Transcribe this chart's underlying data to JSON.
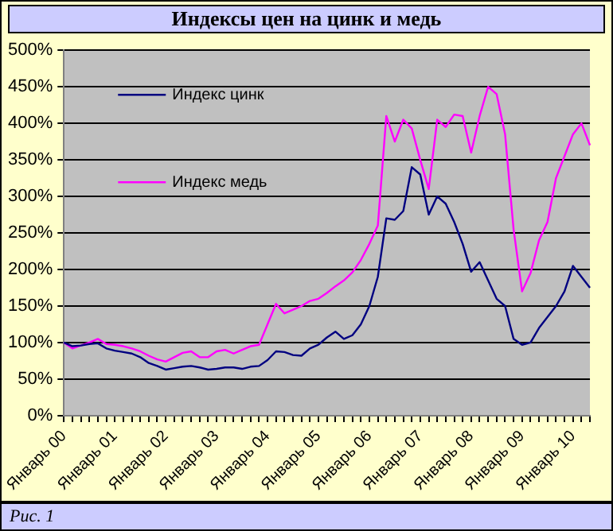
{
  "chart_data": {
    "type": "line",
    "title": "Индексы цен на цинк и медь",
    "categories": [
      "Январь 00",
      null,
      null,
      null,
      null,
      null,
      "Январь 01",
      null,
      null,
      null,
      null,
      null,
      "Январь 02",
      null,
      null,
      null,
      null,
      null,
      "Январь 03",
      null,
      null,
      null,
      null,
      null,
      "Январь 04",
      null,
      null,
      null,
      null,
      null,
      "Январь 05",
      null,
      null,
      null,
      null,
      null,
      "Январь 06",
      null,
      null,
      null,
      null,
      null,
      "Январь 07",
      null,
      null,
      null,
      null,
      null,
      "Январь 08",
      null,
      null,
      null,
      null,
      null,
      "Январь 09",
      null,
      null,
      null,
      null,
      null,
      "Январь 10",
      null,
      null
    ],
    "series": [
      {
        "name": "Индекс цинк",
        "color": "#000080",
        "values": [
          100,
          95,
          96,
          98,
          99,
          92,
          89,
          87,
          85,
          80,
          72,
          68,
          63,
          65,
          67,
          68,
          66,
          63,
          64,
          66,
          66,
          64,
          67,
          68,
          76,
          88,
          87,
          83,
          82,
          92,
          97,
          107,
          115,
          105,
          110,
          125,
          150,
          190,
          270,
          268,
          280,
          340,
          330,
          275,
          300,
          290,
          265,
          235,
          197,
          210,
          185,
          160,
          150,
          105,
          97,
          100,
          120,
          135,
          150,
          170,
          205,
          190,
          175
        ]
      },
      {
        "name": "Индекс медь",
        "color": "#ff00ff",
        "values": [
          100,
          92,
          96,
          100,
          105,
          98,
          97,
          95,
          92,
          88,
          82,
          77,
          74,
          80,
          86,
          88,
          80,
          80,
          88,
          90,
          85,
          90,
          95,
          97,
          125,
          153,
          140,
          145,
          150,
          157,
          160,
          168,
          177,
          185,
          196,
          213,
          235,
          260,
          410,
          375,
          405,
          393,
          350,
          310,
          405,
          395,
          412,
          410,
          360,
          410,
          450,
          440,
          385,
          255,
          170,
          195,
          240,
          265,
          325,
          355,
          385,
          400,
          370
        ]
      }
    ],
    "ylim": [
      0,
      500
    ],
    "yticks": [
      {
        "value": 0,
        "label": "0%"
      },
      {
        "value": 50,
        "label": "50%"
      },
      {
        "value": 100,
        "label": "100%"
      },
      {
        "value": 150,
        "label": "150%"
      },
      {
        "value": 200,
        "label": "200%"
      },
      {
        "value": 250,
        "label": "250%"
      },
      {
        "value": 300,
        "label": "300%"
      },
      {
        "value": 350,
        "label": "350%"
      },
      {
        "value": 400,
        "label": "400%"
      },
      {
        "value": 450,
        "label": "450%"
      },
      {
        "value": 500,
        "label": "500%"
      }
    ],
    "grid": "y",
    "legend": "top left",
    "marker": "none",
    "line_style": "solid",
    "annotations": [
      "Рис. 1"
    ]
  }
}
